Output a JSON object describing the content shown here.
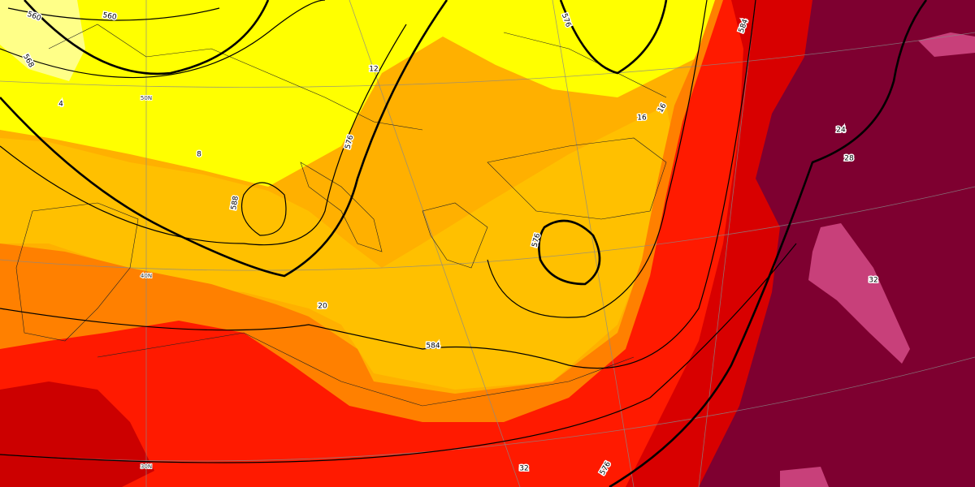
{
  "map": {
    "contour_labels": [
      "560",
      "560",
      "568",
      "4",
      "8",
      "588",
      "576",
      "576",
      "584",
      "12",
      "16",
      "16",
      "584",
      "576",
      "20",
      "32",
      "576",
      "24",
      "28",
      "32"
    ],
    "lat_labels": [
      "50N",
      "40N",
      "30N"
    ]
  }
}
